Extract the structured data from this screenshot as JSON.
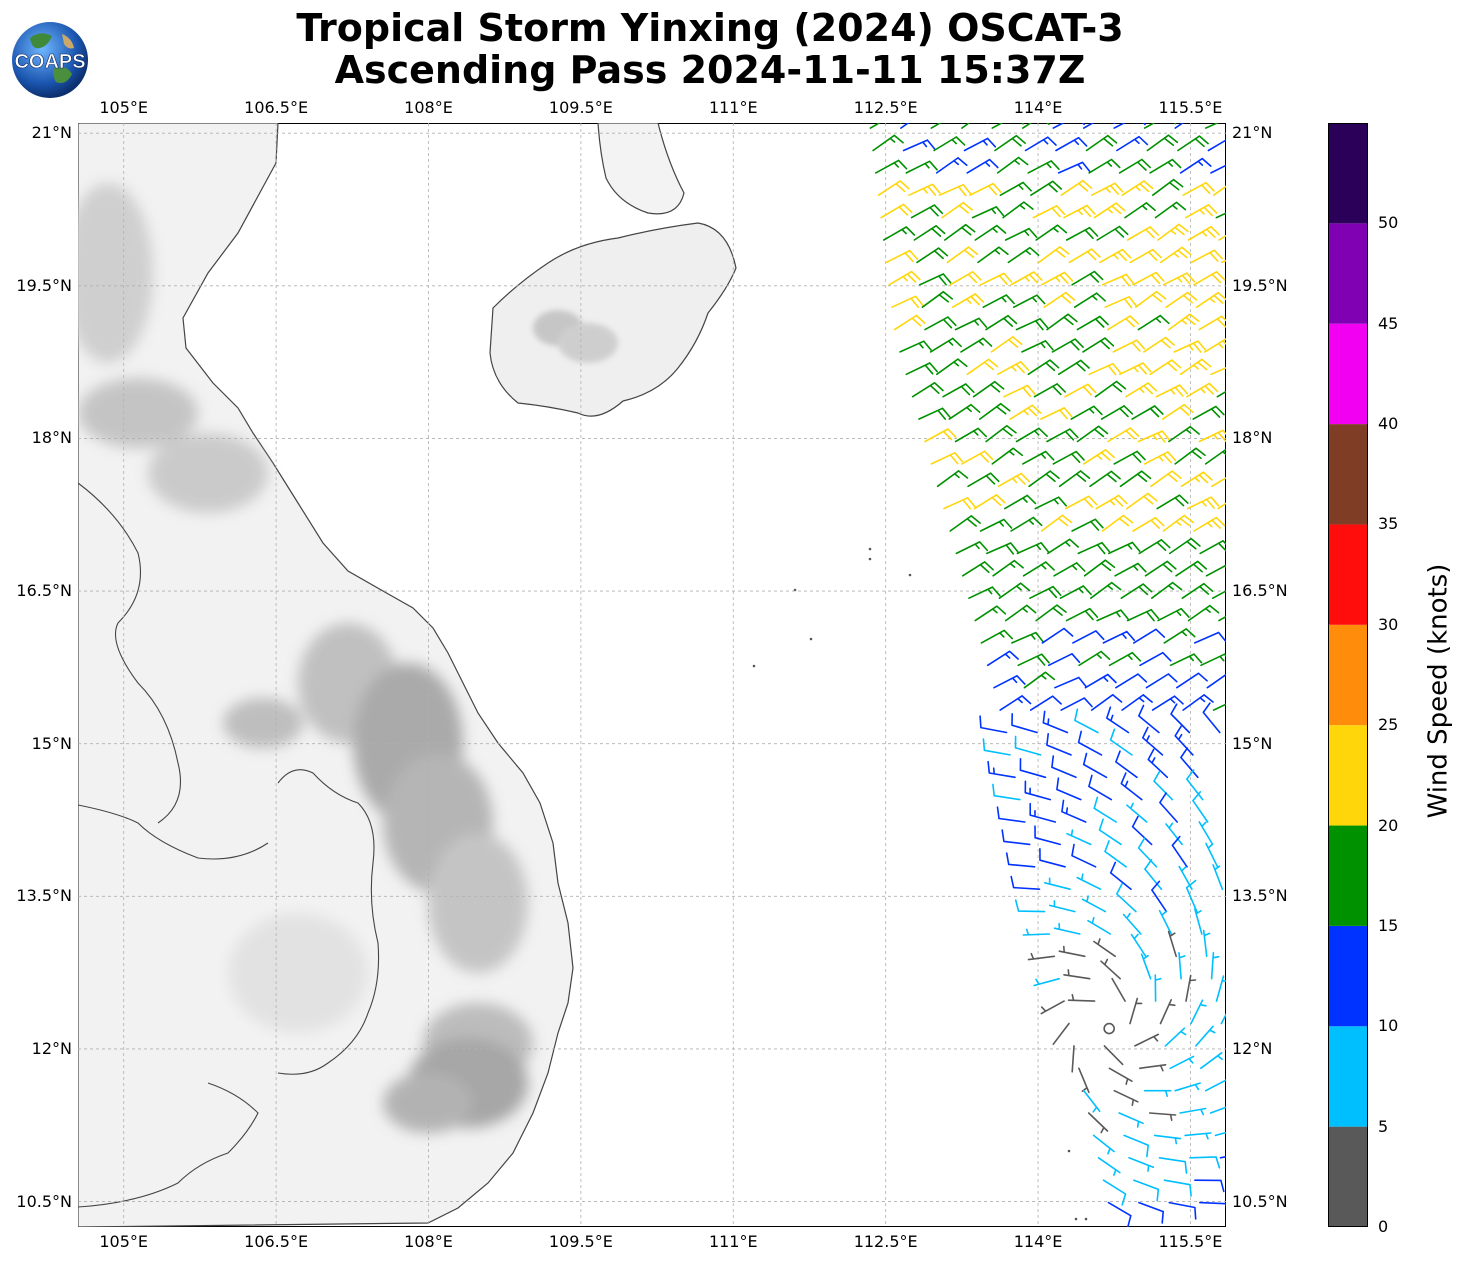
{
  "title": {
    "line1": "Tropical Storm Yinxing (2024) OSCAT-3",
    "line2": "Ascending Pass 2024-11-11 15:37Z"
  },
  "logo": {
    "text": "COAPS",
    "icon": "globe-logo-icon"
  },
  "map": {
    "type": "wind-barb-map",
    "extent": {
      "lon": [
        104.55,
        115.85
      ],
      "lat": [
        10.25,
        21.1
      ]
    },
    "lon_ticks": [
      "105°E",
      "106.5°E",
      "108°E",
      "109.5°E",
      "111°E",
      "112.5°E",
      "114°E",
      "115.5°E"
    ],
    "lat_ticks": [
      "21°N",
      "19.5°N",
      "18°N",
      "16.5°N",
      "15°N",
      "13.5°N",
      "12°N",
      "10.5°N"
    ],
    "lon_tick_values": [
      105,
      106.5,
      108,
      109.5,
      111,
      112.5,
      114,
      115.5
    ],
    "lat_tick_values": [
      21,
      19.5,
      18,
      16.5,
      15,
      13.5,
      12,
      10.5
    ],
    "gridlines": true,
    "land_shading": "grayscale terrain"
  },
  "colorbar": {
    "label": "Wind Speed (knots)",
    "tick_labels": [
      "0",
      "5",
      "10",
      "15",
      "20",
      "25",
      "30",
      "35",
      "40",
      "45",
      "50"
    ],
    "bins": [
      {
        "from": 0,
        "to": 5,
        "color": "#595959"
      },
      {
        "from": 5,
        "to": 10,
        "color": "#00bfff"
      },
      {
        "from": 10,
        "to": 15,
        "color": "#0033ff"
      },
      {
        "from": 15,
        "to": 20,
        "color": "#009100"
      },
      {
        "from": 20,
        "to": 25,
        "color": "#ffd60a"
      },
      {
        "from": 25,
        "to": 30,
        "color": "#ff8c0a"
      },
      {
        "from": 30,
        "to": 35,
        "color": "#ff0d0d"
      },
      {
        "from": 35,
        "to": 40,
        "color": "#803d26"
      },
      {
        "from": 40,
        "to": 45,
        "color": "#f200f2"
      },
      {
        "from": 45,
        "to": 50,
        "color": "#8000b3"
      },
      {
        "from": 50,
        "to": 55,
        "color": "#2b0059"
      }
    ],
    "max": 55
  },
  "storm_center": {
    "lon": 114.7,
    "lat": 12.2,
    "icon": "storm-center-circle-icon"
  },
  "chart_data": {
    "type": "wind-barbs",
    "units": "knots",
    "swath": "OSCAT-3 ascending pass, eastern edge of map from ~112.3°E to 115.8°E",
    "regions": [
      {
        "lat_range": [
          20.5,
          21.1
        ],
        "speed_kt": [
          12,
          18
        ],
        "dir": "NE"
      },
      {
        "lat_range": [
          17.0,
          20.5
        ],
        "speed_kt": [
          15,
          24
        ],
        "dir": "NE"
      },
      {
        "lat_range": [
          15.0,
          16.3
        ],
        "speed_kt": [
          10,
          18
        ],
        "dir": "NE"
      },
      {
        "lat_range": [
          13.0,
          15.0
        ],
        "speed_kt": [
          5,
          12
        ],
        "dir": "cyclonic"
      },
      {
        "lat_range": [
          10.5,
          13.0
        ],
        "speed_kt": [
          0,
          10
        ],
        "dir": "cyclonic, calm near center"
      }
    ]
  }
}
